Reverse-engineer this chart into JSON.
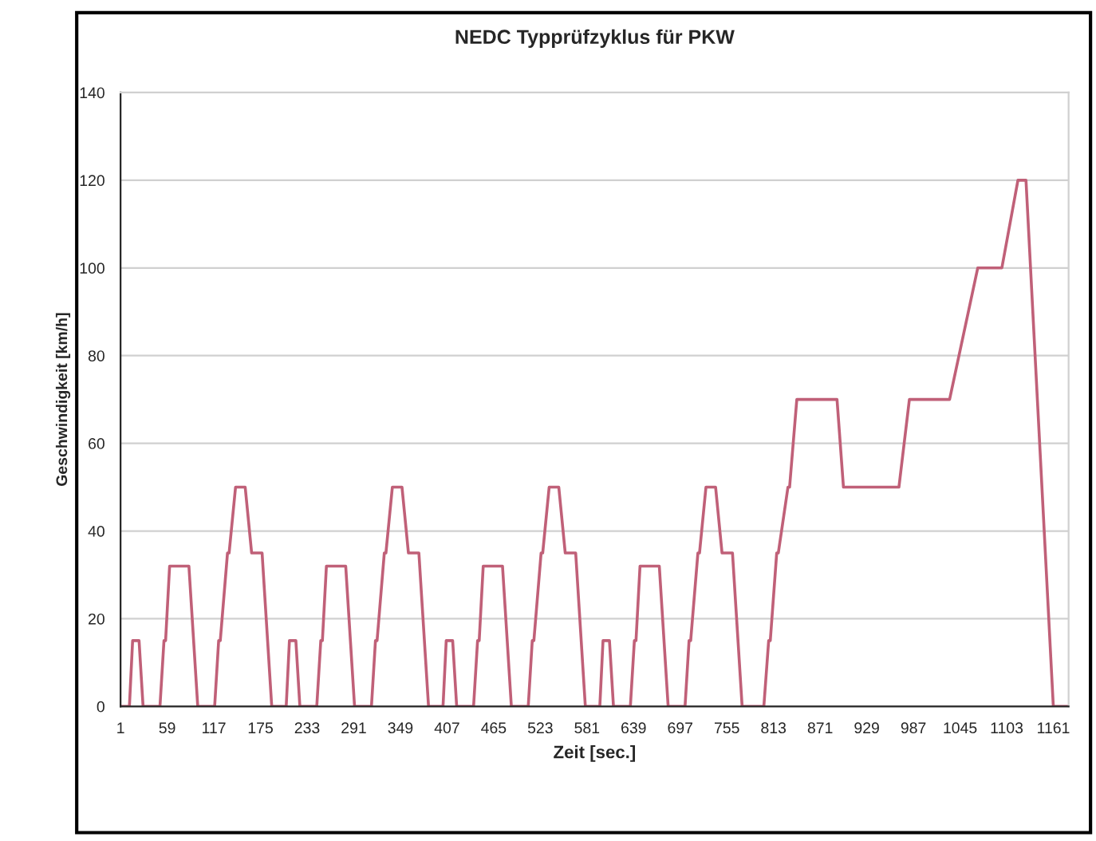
{
  "chart_data": {
    "type": "line",
    "title": "NEDC Typprüfzyklus für PKW",
    "xlabel": "Zeit [sec.]",
    "ylabel": "Geschwindigkeit [km/h]",
    "xlim": [
      1,
      1180
    ],
    "xticks": [
      1,
      59,
      117,
      175,
      233,
      291,
      349,
      407,
      465,
      523,
      581,
      639,
      697,
      755,
      813,
      871,
      929,
      987,
      1045,
      1103,
      1161
    ],
    "ylim": [
      0,
      140
    ],
    "yticks": [
      0,
      20,
      40,
      60,
      80,
      100,
      120,
      140
    ],
    "grid": "y",
    "series": [
      {
        "color": "#c06078",
        "x": [
          1,
          12,
          16,
          24,
          29,
          50,
          55,
          57,
          62,
          86,
          97,
          118,
          123,
          125,
          134,
          136,
          144,
          156,
          164,
          177,
          189,
          196,
          207,
          211,
          219,
          224,
          245,
          250,
          252,
          257,
          281,
          292,
          313,
          318,
          320,
          329,
          331,
          339,
          351,
          359,
          372,
          384,
          391,
          402,
          406,
          414,
          419,
          440,
          445,
          447,
          452,
          476,
          487,
          508,
          513,
          515,
          524,
          526,
          534,
          546,
          554,
          567,
          579,
          586,
          597,
          601,
          609,
          614,
          635,
          640,
          642,
          647,
          671,
          682,
          703,
          708,
          710,
          719,
          721,
          729,
          741,
          749,
          762,
          774,
          801,
          807,
          809,
          817,
          819,
          831,
          833,
          842,
          892,
          900,
          969,
          982,
          1032,
          1067,
          1097,
          1117,
          1127,
          1161,
          1180
        ],
        "values": [
          0,
          0,
          15,
          15,
          0,
          0,
          15,
          15,
          32,
          32,
          0,
          0,
          15,
          15,
          35,
          35,
          50,
          50,
          35,
          35,
          0,
          0,
          0,
          15,
          15,
          0,
          0,
          15,
          15,
          32,
          32,
          0,
          0,
          15,
          15,
          35,
          35,
          50,
          50,
          35,
          35,
          0,
          0,
          0,
          15,
          15,
          0,
          0,
          15,
          15,
          32,
          32,
          0,
          0,
          15,
          15,
          35,
          35,
          50,
          50,
          35,
          35,
          0,
          0,
          0,
          15,
          15,
          0,
          0,
          15,
          15,
          32,
          32,
          0,
          0,
          15,
          15,
          35,
          35,
          50,
          50,
          35,
          35,
          0,
          0,
          15,
          15,
          35,
          35,
          50,
          50,
          70,
          70,
          50,
          50,
          70,
          70,
          100,
          100,
          120,
          120,
          0,
          0
        ]
      }
    ]
  }
}
